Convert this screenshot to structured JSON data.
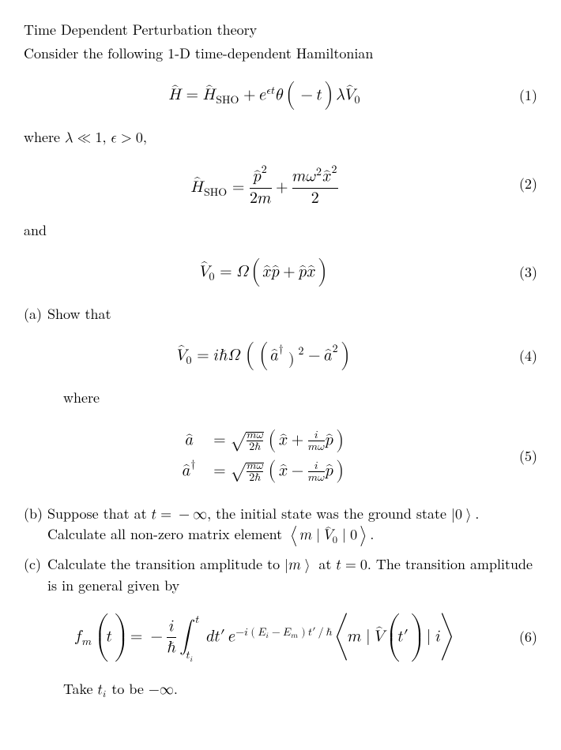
{
  "title_line1": "Time Dependent Perturbation theory",
  "title_line2": "Consider the following 1-D time-dependent Hamiltonian",
  "eq1": {
    "mathml": "<math display='block'><mrow><mover><mi>H</mi><mo>^</mo></mover><mo>=</mo><msub><mover><mi>H</mi><mo>^</mo></mover><mtext>SHO</mtext></msub><mo>+</mo><msup><mi>e</mi><mrow><mi>&#x03F5;</mi><mi>t</mi></mrow></msup><mi>&#x03B8;</mi><mo>(</mo><mo>&#x2212;</mo><mi>t</mi><mo>)</mo><mi>&#x03BB;</mi><msub><mover><mi>V</mi><mo>^</mo></mover><mn>0</mn></msub></mrow></math>",
    "num": "(1)"
  },
  "where1": {
    "prefix": "where ",
    "mathml": "<math><mi>&#x03BB;</mi><mo>&#x226A;</mo><mn>1</mn></math>",
    "mid": ", ",
    "mathml2": "<math><mi>&#x03F5;</mi><mo>&gt;</mo><mn>0</mn></math>",
    "suffix": ","
  },
  "eq2": {
    "mathml": "<math display='block'><mrow><msub><mover><mi>H</mi><mo>^</mo></mover><mtext>SHO</mtext></msub><mo>=</mo><mfrac><msup><mover><mi>p</mi><mo>^</mo></mover><mn>2</mn></msup><mrow><mn>2</mn><mi>m</mi></mrow></mfrac><mo>+</mo><mfrac><mrow><mi>m</mi><msup><mi>&#x03C9;</mi><mn>2</mn></msup><msup><mover><mi>x</mi><mo>^</mo></mover><mn>2</mn></msup></mrow><mn>2</mn></mfrac></mrow></math>",
    "num": "(2)"
  },
  "and_text": "and",
  "eq3": {
    "mathml": "<math display='block'><mrow><msub><mover><mi>V</mi><mo>^</mo></mover><mn>0</mn></msub><mo>=</mo><mi>&#x03A9;</mi><mo>(</mo><mover><mi>x</mi><mo>^</mo></mover><mover><mi>p</mi><mo>^</mo></mover><mo>+</mo><mover><mi>p</mi><mo>^</mo></mover><mover><mi>x</mi><mo>^</mo></mover><mo>)</mo></mrow></math>",
    "num": "(3)"
  },
  "part_a": {
    "label": "(a)",
    "text": "Show that"
  },
  "eq4": {
    "mathml": "<math display='block'><mrow><msub><mover><mi>V</mi><mo>^</mo></mover><mn>0</mn></msub><mo>=</mo><mi>i</mi><mi>&#x210F;</mi><mi>&#x03A9;</mi><mspace width='0.15em'/><mo>(</mo><mo>(</mo><msup><mover><mi>a</mi><mo>^</mo></mover><mo>&#x2020;</mo></msup><msup><mo>)</mo><mn>2</mn></msup><mo>&#x2212;</mo><msup><mover><mi>a</mi><mo>^</mo></mover><mn>2</mn></msup><mo>)</mo></mrow></math>",
    "num": "(4)"
  },
  "where_text": "where",
  "eq5": {
    "mathml": "<math display='block'><mtable columnalign='right left' rowspacing='10px'><mtr><mtd><mover><mi>a</mi><mo>^</mo></mover></mtd><mtd><mo>=</mo><msqrt><mfrac><mrow><mi>m</mi><mi>&#x03C9;</mi></mrow><mrow><mn>2</mn><mi>&#x210F;</mi></mrow></mfrac></msqrt><mo>(</mo><mover><mi>x</mi><mo>^</mo></mover><mo>+</mo><mfrac><mi>i</mi><mrow><mi>m</mi><mi>&#x03C9;</mi></mrow></mfrac><mover><mi>p</mi><mo>^</mo></mover><mo>)</mo></mtd></mtr><mtr><mtd><msup><mover><mi>a</mi><mo>^</mo></mover><mo>&#x2020;</mo></msup></mtd><mtd><mo>=</mo><msqrt><mfrac><mrow><mi>m</mi><mi>&#x03C9;</mi></mrow><mrow><mn>2</mn><mi>&#x210F;</mi></mrow></mfrac></msqrt><mo>(</mo><mover><mi>x</mi><mo>^</mo></mover><mo>&#x2212;</mo><mfrac><mi>i</mi><mrow><mi>m</mi><mi>&#x03C9;</mi></mrow></mfrac><mover><mi>p</mi><mo>^</mo></mover><mo>)</mo></mtd></mtr></mtable></math>",
    "num": "(5)"
  },
  "part_b": {
    "label": "(b)",
    "pre": "Suppose that at ",
    "math1": "<math><mi>t</mi><mo>=</mo><mo>&#x2212;</mo><mi>&#x221E;</mi></math>",
    "mid1": ", the initial state was the ground state ",
    "math2": "<math><mo>|</mo><mn>0</mn><mo>&#x27E9;</mo></math>",
    "mid2": ". Calculate all non-zero matrix element ",
    "math3": "<math><mo>&#x27E8;</mo><mi>m</mi><mo>|</mo><msub><mover><mi>V</mi><mo>^</mo></mover><mn>0</mn></msub><mo>|</mo><mn>0</mn><mo>&#x27E9;</mo></math>",
    "post": "."
  },
  "part_c": {
    "label": "(c)",
    "pre": "Calculate the transition amplitude to ",
    "math1": "<math><mo>|</mo><mi>m</mi><mo>&#x27E9;</mo></math>",
    "mid1": " at ",
    "math2": "<math><mi>t</mi><mo>=</mo><mn>0</mn></math>",
    "post": ". The transition amplitude is in general given by"
  },
  "eq6": {
    "mathml": "<math display='block'><mrow><msub><mi>f</mi><mi>m</mi></msub><mo>(</mo><mi>t</mi><mo>)</mo><mo>=</mo><mo>&#x2212;</mo><mfrac><mi>i</mi><mi>&#x210F;</mi></mfrac><mstyle displaystyle='true'><msubsup><mo>&#x222B;</mo><msub><mi>t</mi><mi>i</mi></msub><mi>t</mi></msubsup></mstyle><mi>d</mi><mi>t</mi><mo>&#x2032;</mo><mspace width='0.2em'/><msup><mi>e</mi><mrow><mo>&#x2212;</mo><mi>i</mi><mo>(</mo><msub><mi>E</mi><mi>i</mi></msub><mo>&#x2212;</mo><msub><mi>E</mi><mi>m</mi></msub><mo>)</mo><mi>t</mi><mo>&#x2032;</mo><mo>/</mo><mi>&#x210F;</mi></mrow></msup><mo>&#x27E8;</mo><mi>m</mi><mo>|</mo><mover><mi>V</mi><mo>^</mo></mover><mo>(</mo><mi>t</mi><mo>&#x2032;</mo><mo>)</mo><mo>|</mo><mi>i</mi><mo>&#x27E9;</mo></mrow></math>",
    "num": "(6)"
  },
  "take_ti": {
    "pre": "Take ",
    "math1": "<math><msub><mi>t</mi><mi>i</mi></msub></math>",
    "mid": " to be ",
    "math2": "<math><mo>&#x2212;</mo><mi>&#x221E;</mi></math>",
    "post": "."
  }
}
